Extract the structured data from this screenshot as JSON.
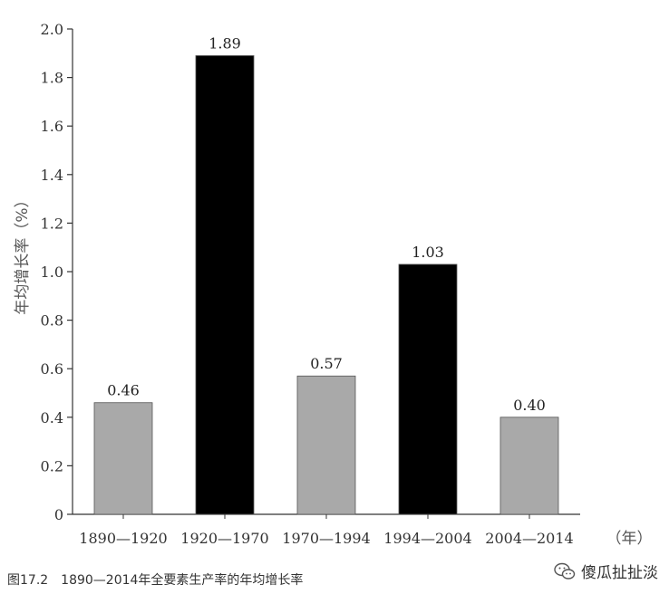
{
  "chart_data": {
    "type": "bar",
    "categories": [
      "1890—1920",
      "1920—1970",
      "1970—1994",
      "1994—2004",
      "2004—2014"
    ],
    "values": [
      0.46,
      1.89,
      0.57,
      1.03,
      0.4
    ],
    "value_labels": [
      "0.46",
      "1.89",
      "0.57",
      "1.03",
      "0.40"
    ],
    "bar_colors": [
      "#a9a9a9",
      "#000000",
      "#a9a9a9",
      "#000000",
      "#a9a9a9"
    ],
    "ylabel": "年均增长率（%）",
    "x_unit": "（年）",
    "ylim": [
      0,
      2.0
    ],
    "yticks": [
      "0",
      "0.2",
      "0.4",
      "0.6",
      "0.8",
      "1.0",
      "1.2",
      "1.4",
      "1.6",
      "1.8",
      "2.0"
    ],
    "grid": false,
    "legend": "none"
  },
  "caption": "图17.2　1890—2014年全要素生产率的年均增长率",
  "watermark": "傻瓜扯扯淡",
  "colors": {
    "axis": "#333333",
    "text": "#333333"
  },
  "watermark_icon": "wechat-icon"
}
